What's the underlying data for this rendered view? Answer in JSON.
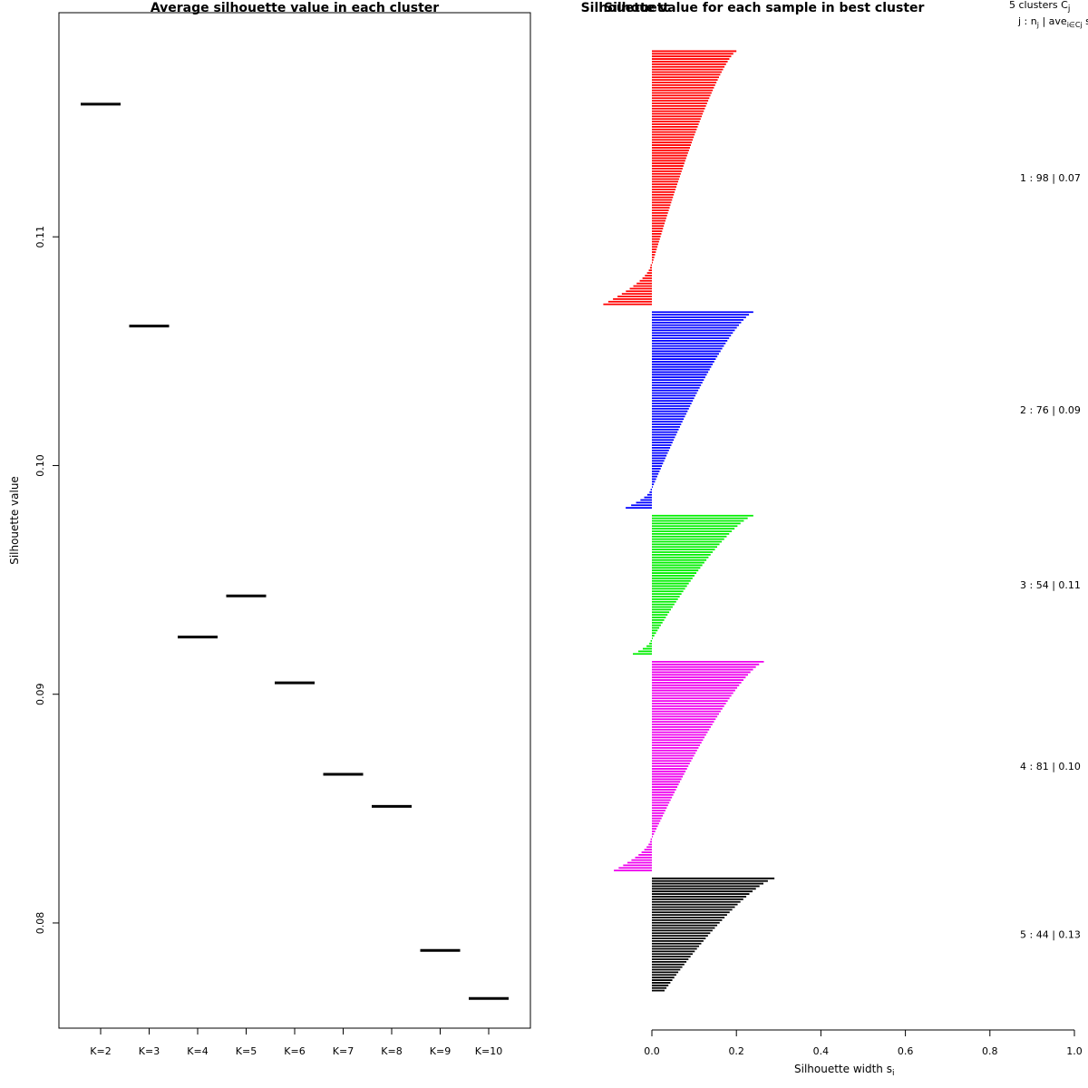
{
  "chart_data": [
    {
      "type": "scatter",
      "marker": "horizontal-segment",
      "title": "Average silhouette value in each cluster",
      "xlabel": "",
      "ylabel": "Silhouette value",
      "categories": [
        "K=2",
        "K=3",
        "K=4",
        "K=5",
        "K=6",
        "K=7",
        "K=8",
        "K=9",
        "K=10"
      ],
      "values": [
        0.1158,
        0.1061,
        0.0925,
        0.0943,
        0.0905,
        0.0865,
        0.0851,
        0.0788,
        0.0767
      ],
      "yticks": [
        "0.08",
        "0.09",
        "0.10",
        "0.11"
      ],
      "ylim": [
        0.0754,
        0.1198
      ],
      "grid": false
    },
    {
      "type": "bar",
      "orientation": "horizontal",
      "title": "Silhouette value for each sample in best cluster",
      "overlapping_title_fragment": "Silhouett",
      "xlabel": "Silhouette width s",
      "xlabel_subscript": "i",
      "xticks": [
        "0.0",
        "0.2",
        "0.4",
        "0.6",
        "0.8",
        "1.0"
      ],
      "xlim": [
        0,
        1
      ],
      "legend_header": {
        "line1": "5 clusters C",
        "line1_sub": "j",
        "line2_a": "j :  n",
        "line2_a_sub": "j",
        "line2_b": " | ave",
        "line2_b_sub": "i∈Cj",
        "line2_c": "  s"
      },
      "clusters": [
        {
          "id": 1,
          "n": 98,
          "summary": "1 :  98  |  0.07",
          "color": "#ff0000",
          "max": 0.2,
          "min": -0.115,
          "neg_count": 16
        },
        {
          "id": 2,
          "n": 76,
          "summary": "2 :  76  |  0.09",
          "color": "#0000ff",
          "max": 0.24,
          "min": -0.062,
          "neg_count": 8
        },
        {
          "id": 3,
          "n": 54,
          "summary": "3 :  54  |  0.11",
          "color": "#00ee00",
          "max": 0.24,
          "min": -0.045,
          "neg_count": 6
        },
        {
          "id": 4,
          "n": 81,
          "summary": "4 :  81  |  0.10",
          "color": "#ee00ee",
          "max": 0.265,
          "min": -0.09,
          "neg_count": 13
        },
        {
          "id": 5,
          "n": 44,
          "summary": "5 :  44  |  0.13",
          "color": "#000000",
          "max": 0.29,
          "min": 0.03,
          "neg_count": 0
        }
      ]
    }
  ]
}
